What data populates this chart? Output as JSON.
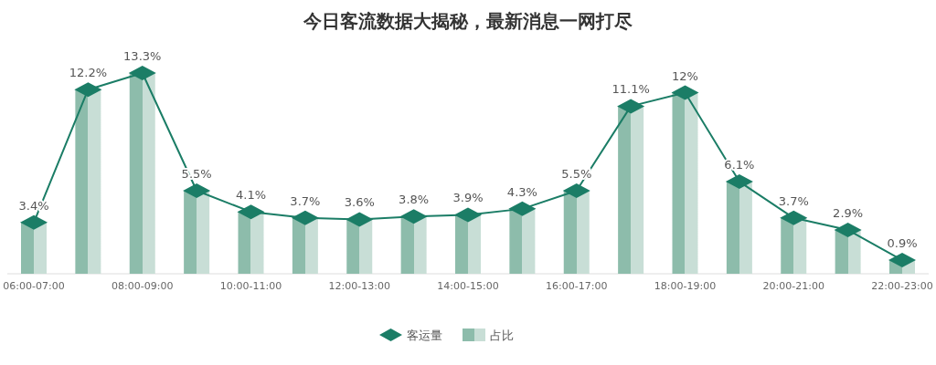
{
  "chart_data": {
    "type": "bar",
    "title": "今日客流数据大揭秘，最新消息一网打尽",
    "categories": [
      "06:00-07:00",
      null,
      "08:00-09:00",
      null,
      "10:00-11:00",
      null,
      "12:00-13:00",
      null,
      "14:00-15:00",
      null,
      "16:00-17:00",
      null,
      "18:00-19:00",
      null,
      "20:00-21:00",
      null,
      "22:00-23:00"
    ],
    "series": [
      {
        "name": "客运量",
        "type": "line",
        "marker": "diamond",
        "color": "#1b7d66",
        "values": [
          3.4,
          12.2,
          13.3,
          5.5,
          4.1,
          3.7,
          3.6,
          3.8,
          3.9,
          4.3,
          5.5,
          11.1,
          12,
          6.1,
          3.7,
          2.9,
          0.9
        ],
        "value_labels": [
          "3.4%",
          "12.2%",
          "13.3%",
          "5.5%",
          "4.1%",
          "3.7%",
          "3.6%",
          "3.8%",
          "3.9%",
          "4.3%",
          "5.5%",
          "11.1%",
          "12%",
          "6.1%",
          "3.7%",
          "2.9%",
          "0.9%"
        ]
      },
      {
        "name": "占比",
        "type": "bar",
        "color": "#8dbcab",
        "values": [
          3.4,
          12.2,
          13.3,
          5.5,
          4.1,
          3.7,
          3.6,
          3.8,
          3.9,
          4.3,
          5.5,
          11.1,
          12,
          6.1,
          3.7,
          2.9,
          0.9
        ]
      }
    ],
    "legend": "bottom",
    "tick_labels": "x"
  }
}
